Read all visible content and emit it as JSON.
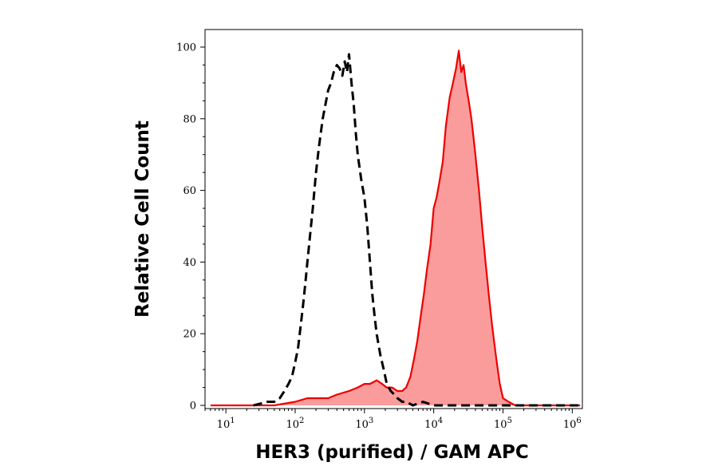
{
  "chart_data": {
    "type": "area",
    "title": "",
    "xlabel": "HER3 (purified) / GAM APC",
    "ylabel": "Relative Cell Count",
    "x_scale": "log",
    "xlim": [
      5,
      1400000
    ],
    "ylim": [
      0,
      105
    ],
    "x_ticks": [
      {
        "value": 10,
        "base": "10",
        "exp": "1"
      },
      {
        "value": 100,
        "base": "10",
        "exp": "2"
      },
      {
        "value": 1000,
        "base": "10",
        "exp": "3"
      },
      {
        "value": 10000,
        "base": "10",
        "exp": "4"
      },
      {
        "value": 100000,
        "base": "10",
        "exp": "5"
      },
      {
        "value": 1000000,
        "base": "10",
        "exp": "6"
      }
    ],
    "y_ticks": [
      0,
      20,
      40,
      60,
      80,
      100
    ],
    "grid": false,
    "legend": "none",
    "colors": {
      "stained_fill": "#fb9c9c",
      "stained_line": "#ee0000",
      "control_line": "#000000"
    },
    "series": [
      {
        "style": "dashed",
        "x": [
          25,
          40,
          50,
          60,
          70,
          80,
          90,
          100,
          110,
          120,
          130,
          140,
          150,
          165,
          180,
          200,
          220,
          250,
          280,
          300,
          330,
          360,
          400,
          440,
          480,
          520,
          560,
          600,
          650,
          700,
          750,
          800,
          900,
          1000,
          1100,
          1200,
          1300,
          1400,
          1500,
          1700,
          1900,
          2100,
          2400,
          2700,
          3000,
          3500,
          4000,
          5000,
          7000,
          10000,
          100000,
          1300000
        ],
        "y": [
          0,
          1,
          1,
          2,
          4,
          6,
          8,
          12,
          16,
          22,
          28,
          34,
          40,
          48,
          55,
          65,
          72,
          80,
          85,
          88,
          90,
          93,
          95,
          94,
          92,
          96,
          93,
          98,
          90,
          84,
          76,
          70,
          63,
          58,
          50,
          40,
          31,
          25,
          20,
          14,
          10,
          6,
          4,
          3,
          2,
          1,
          1,
          0,
          1,
          0,
          0,
          0
        ]
      },
      {
        "style": "filled",
        "x": [
          6,
          50,
          100,
          150,
          200,
          300,
          400,
          600,
          800,
          1000,
          1200,
          1500,
          1800,
          2100,
          2500,
          3000,
          3500,
          4000,
          4600,
          5200,
          5800,
          6500,
          7200,
          8000,
          9000,
          10000,
          11000,
          12000,
          13500,
          15000,
          17000,
          19000,
          21000,
          23000,
          25000,
          27000,
          29000,
          32000,
          35000,
          40000,
          45000,
          50000,
          56000,
          63000,
          70000,
          80000,
          90000,
          100000,
          120000,
          150000,
          1300000
        ],
        "y": [
          0,
          0,
          1,
          2,
          2,
          2,
          3,
          4,
          5,
          6,
          6,
          7,
          6,
          5,
          5,
          4,
          4,
          5,
          8,
          13,
          18,
          25,
          31,
          38,
          45,
          55,
          58,
          62,
          68,
          78,
          86,
          90,
          94,
          99,
          93,
          95,
          90,
          85,
          80,
          70,
          60,
          50,
          40,
          30,
          22,
          13,
          6,
          2,
          1,
          0,
          0
        ]
      }
    ]
  }
}
